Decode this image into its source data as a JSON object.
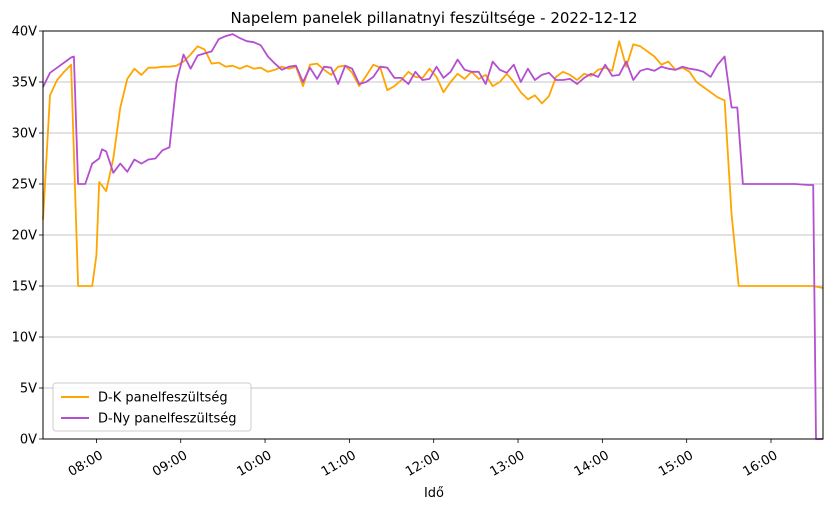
{
  "chart_data": {
    "type": "line",
    "title": "Napelem panelek pillanatnyi feszültsége  -  2022-12-12",
    "xlabel": "Idő",
    "ylabel": "",
    "ylim": [
      0,
      40
    ],
    "yticks": [
      0,
      5,
      10,
      15,
      20,
      25,
      30,
      35,
      40
    ],
    "ytick_labels": [
      "0V",
      "5V",
      "10V",
      "15V",
      "20V",
      "25V",
      "30V",
      "35V",
      "40V"
    ],
    "xlim": [
      "07:22",
      "16:37"
    ],
    "xticks": [
      "08:00",
      "09:00",
      "10:00",
      "11:00",
      "12:00",
      "13:00",
      "14:00",
      "15:00",
      "16:00"
    ],
    "xtick_labels": [
      "08:00",
      "09:00",
      "10:00",
      "11:00",
      "12:00",
      "13:00",
      "14:00",
      "15:00",
      "16:00"
    ],
    "grid": "horizontal",
    "legend_position": "lower-left",
    "series": [
      {
        "name": "D-K panelfeszültség",
        "color": "#ffa500",
        "points": [
          [
            "07:22",
            21.5
          ],
          [
            "07:27",
            33.7
          ],
          [
            "07:32",
            35.2
          ],
          [
            "07:37",
            36.0
          ],
          [
            "07:42",
            36.7
          ],
          [
            "07:47",
            15.0
          ],
          [
            "07:52",
            15.0
          ],
          [
            "07:57",
            15.0
          ],
          [
            "08:00",
            18.0
          ],
          [
            "08:02",
            25.2
          ],
          [
            "08:07",
            24.3
          ],
          [
            "08:12",
            27.5
          ],
          [
            "08:17",
            32.5
          ],
          [
            "08:22",
            35.3
          ],
          [
            "08:27",
            36.3
          ],
          [
            "08:32",
            35.7
          ],
          [
            "08:37",
            36.4
          ],
          [
            "08:42",
            36.4
          ],
          [
            "08:47",
            36.5
          ],
          [
            "08:52",
            36.5
          ],
          [
            "08:57",
            36.6
          ],
          [
            "09:02",
            37.0
          ],
          [
            "09:07",
            37.7
          ],
          [
            "09:12",
            38.5
          ],
          [
            "09:17",
            38.2
          ],
          [
            "09:22",
            36.8
          ],
          [
            "09:27",
            36.9
          ],
          [
            "09:32",
            36.5
          ],
          [
            "09:37",
            36.6
          ],
          [
            "09:42",
            36.3
          ],
          [
            "09:47",
            36.6
          ],
          [
            "09:52",
            36.3
          ],
          [
            "09:57",
            36.4
          ],
          [
            "10:02",
            36.0
          ],
          [
            "10:07",
            36.2
          ],
          [
            "10:12",
            36.5
          ],
          [
            "10:17",
            36.3
          ],
          [
            "10:22",
            36.5
          ],
          [
            "10:27",
            34.6
          ],
          [
            "10:32",
            36.7
          ],
          [
            "10:37",
            36.8
          ],
          [
            "10:42",
            36.2
          ],
          [
            "10:47",
            35.7
          ],
          [
            "10:52",
            36.5
          ],
          [
            "10:57",
            36.6
          ],
          [
            "11:02",
            35.9
          ],
          [
            "11:07",
            34.6
          ],
          [
            "11:12",
            35.6
          ],
          [
            "11:17",
            36.7
          ],
          [
            "11:22",
            36.4
          ],
          [
            "11:27",
            34.2
          ],
          [
            "11:32",
            34.6
          ],
          [
            "11:37",
            35.2
          ],
          [
            "11:42",
            36.0
          ],
          [
            "11:47",
            35.5
          ],
          [
            "11:52",
            35.4
          ],
          [
            "11:57",
            36.3
          ],
          [
            "12:02",
            35.5
          ],
          [
            "12:07",
            34.0
          ],
          [
            "12:12",
            35.0
          ],
          [
            "12:17",
            35.8
          ],
          [
            "12:22",
            35.3
          ],
          [
            "12:27",
            36.0
          ],
          [
            "12:32",
            35.3
          ],
          [
            "12:37",
            35.7
          ],
          [
            "12:42",
            34.6
          ],
          [
            "12:47",
            35.0
          ],
          [
            "12:52",
            35.8
          ],
          [
            "12:57",
            35.0
          ],
          [
            "13:02",
            34.0
          ],
          [
            "13:07",
            33.3
          ],
          [
            "13:12",
            33.7
          ],
          [
            "13:17",
            32.9
          ],
          [
            "13:22",
            33.6
          ],
          [
            "13:27",
            35.5
          ],
          [
            "13:32",
            36.0
          ],
          [
            "13:37",
            35.7
          ],
          [
            "13:42",
            35.2
          ],
          [
            "13:47",
            35.8
          ],
          [
            "13:52",
            35.6
          ],
          [
            "13:57",
            36.2
          ],
          [
            "14:02",
            36.4
          ],
          [
            "14:07",
            36.1
          ],
          [
            "14:12",
            39.0
          ],
          [
            "14:17",
            36.5
          ],
          [
            "14:22",
            38.7
          ],
          [
            "14:27",
            38.5
          ],
          [
            "14:32",
            38.0
          ],
          [
            "14:37",
            37.5
          ],
          [
            "14:42",
            36.7
          ],
          [
            "14:47",
            37.0
          ],
          [
            "14:52",
            36.2
          ],
          [
            "14:57",
            36.4
          ],
          [
            "15:02",
            36.0
          ],
          [
            "15:07",
            35.0
          ],
          [
            "15:12",
            34.5
          ],
          [
            "15:17",
            34.0
          ],
          [
            "15:22",
            33.5
          ],
          [
            "15:27",
            33.2
          ],
          [
            "15:32",
            22.0
          ],
          [
            "15:37",
            15.0
          ],
          [
            "15:42",
            15.0
          ],
          [
            "15:52",
            15.0
          ],
          [
            "16:02",
            15.0
          ],
          [
            "16:12",
            15.0
          ],
          [
            "16:22",
            15.0
          ],
          [
            "16:30",
            15.0
          ],
          [
            "16:37",
            14.8
          ]
        ]
      },
      {
        "name": "D-Ny panelfeszültség",
        "color": "#b44fd0",
        "points": [
          [
            "07:22",
            34.5
          ],
          [
            "07:27",
            35.9
          ],
          [
            "07:32",
            36.4
          ],
          [
            "07:37",
            36.9
          ],
          [
            "07:42",
            37.4
          ],
          [
            "07:44",
            37.5
          ],
          [
            "07:47",
            25.0
          ],
          [
            "07:52",
            25.0
          ],
          [
            "07:57",
            27.0
          ],
          [
            "08:02",
            27.5
          ],
          [
            "08:04",
            28.4
          ],
          [
            "08:07",
            28.2
          ],
          [
            "08:12",
            26.1
          ],
          [
            "08:17",
            27.0
          ],
          [
            "08:22",
            26.2
          ],
          [
            "08:27",
            27.4
          ],
          [
            "08:32",
            27.0
          ],
          [
            "08:37",
            27.4
          ],
          [
            "08:42",
            27.5
          ],
          [
            "08:47",
            28.3
          ],
          [
            "08:52",
            28.6
          ],
          [
            "08:57",
            35.0
          ],
          [
            "09:02",
            37.7
          ],
          [
            "09:07",
            36.3
          ],
          [
            "09:12",
            37.6
          ],
          [
            "09:17",
            37.8
          ],
          [
            "09:22",
            38.0
          ],
          [
            "09:27",
            39.2
          ],
          [
            "09:32",
            39.5
          ],
          [
            "09:37",
            39.7
          ],
          [
            "09:42",
            39.3
          ],
          [
            "09:47",
            39.0
          ],
          [
            "09:52",
            38.9
          ],
          [
            "09:57",
            38.6
          ],
          [
            "10:02",
            37.5
          ],
          [
            "10:07",
            36.8
          ],
          [
            "10:12",
            36.2
          ],
          [
            "10:17",
            36.5
          ],
          [
            "10:22",
            36.6
          ],
          [
            "10:27",
            35.0
          ],
          [
            "10:32",
            36.4
          ],
          [
            "10:37",
            35.3
          ],
          [
            "10:42",
            36.5
          ],
          [
            "10:47",
            36.4
          ],
          [
            "10:52",
            34.8
          ],
          [
            "10:57",
            36.6
          ],
          [
            "11:02",
            36.3
          ],
          [
            "11:07",
            34.8
          ],
          [
            "11:12",
            35.0
          ],
          [
            "11:17",
            35.5
          ],
          [
            "11:22",
            36.5
          ],
          [
            "11:27",
            36.4
          ],
          [
            "11:32",
            35.4
          ],
          [
            "11:37",
            35.4
          ],
          [
            "11:42",
            34.8
          ],
          [
            "11:47",
            36.0
          ],
          [
            "11:52",
            35.2
          ],
          [
            "11:57",
            35.3
          ],
          [
            "12:02",
            36.5
          ],
          [
            "12:07",
            35.4
          ],
          [
            "12:12",
            36.0
          ],
          [
            "12:17",
            37.2
          ],
          [
            "12:22",
            36.2
          ],
          [
            "12:27",
            36.0
          ],
          [
            "12:32",
            36.0
          ],
          [
            "12:37",
            34.8
          ],
          [
            "12:42",
            37.0
          ],
          [
            "12:47",
            36.2
          ],
          [
            "12:52",
            35.9
          ],
          [
            "12:57",
            36.7
          ],
          [
            "13:02",
            35.0
          ],
          [
            "13:07",
            36.3
          ],
          [
            "13:12",
            35.2
          ],
          [
            "13:17",
            35.7
          ],
          [
            "13:22",
            35.9
          ],
          [
            "13:27",
            35.2
          ],
          [
            "13:32",
            35.2
          ],
          [
            "13:37",
            35.3
          ],
          [
            "13:42",
            34.8
          ],
          [
            "13:47",
            35.4
          ],
          [
            "13:52",
            35.8
          ],
          [
            "13:57",
            35.5
          ],
          [
            "14:02",
            36.7
          ],
          [
            "14:07",
            35.6
          ],
          [
            "14:12",
            35.7
          ],
          [
            "14:17",
            37.0
          ],
          [
            "14:22",
            35.2
          ],
          [
            "14:27",
            36.1
          ],
          [
            "14:32",
            36.3
          ],
          [
            "14:37",
            36.1
          ],
          [
            "14:42",
            36.5
          ],
          [
            "14:47",
            36.3
          ],
          [
            "14:52",
            36.2
          ],
          [
            "14:57",
            36.5
          ],
          [
            "15:02",
            36.3
          ],
          [
            "15:07",
            36.2
          ],
          [
            "15:12",
            36.0
          ],
          [
            "15:17",
            35.5
          ],
          [
            "15:22",
            36.7
          ],
          [
            "15:27",
            37.5
          ],
          [
            "15:32",
            32.5
          ],
          [
            "15:36",
            32.5
          ],
          [
            "15:40",
            25.0
          ],
          [
            "15:47",
            25.0
          ],
          [
            "16:07",
            25.0
          ],
          [
            "16:17",
            25.0
          ],
          [
            "16:27",
            24.9
          ],
          [
            "16:30",
            24.9
          ],
          [
            "16:32",
            0.0
          ],
          [
            "16:37",
            0.0
          ]
        ]
      }
    ]
  }
}
